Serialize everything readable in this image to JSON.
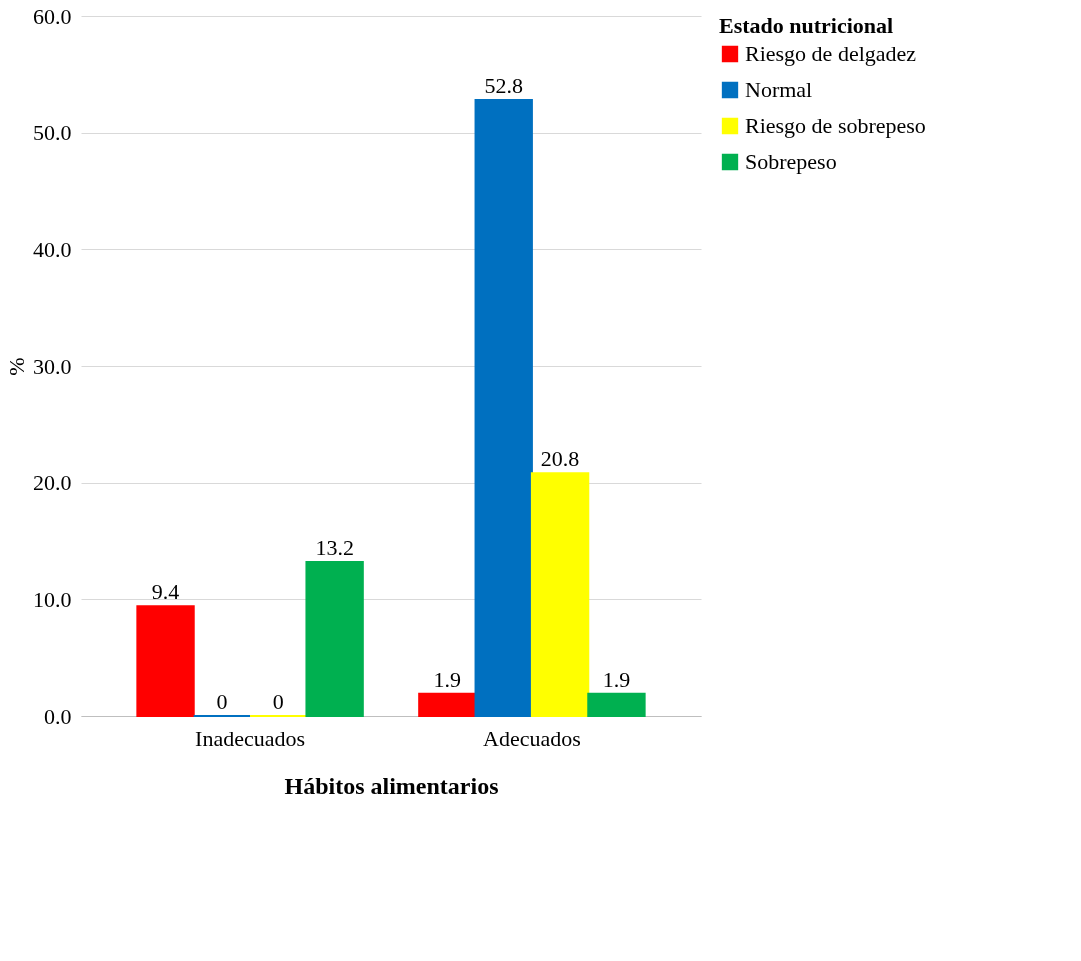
{
  "chart_data": {
    "type": "bar",
    "xlabel": "Hábitos alimentarios",
    "ylabel": "%",
    "legend_title": "Estado nutricional",
    "categories": [
      "Inadecuados",
      "Adecuados"
    ],
    "series": [
      {
        "name": "Riesgo de delgadez",
        "color": "#ff0000",
        "values": [
          9.4,
          1.9
        ]
      },
      {
        "name": "Normal",
        "color": "#0070c0",
        "values": [
          0,
          52.8
        ]
      },
      {
        "name": "Riesgo de sobrepeso",
        "color": "#ffff00",
        "values": [
          0,
          20.8
        ]
      },
      {
        "name": "Sobrepeso",
        "color": "#00b050",
        "values": [
          13.2,
          1.9
        ]
      }
    ],
    "ylim": [
      0,
      60
    ],
    "yticks": [
      {
        "value": 0,
        "label": "0.0"
      },
      {
        "value": 10,
        "label": "10.0"
      },
      {
        "value": 20,
        "label": "20.0"
      },
      {
        "value": 30,
        "label": "30.0"
      },
      {
        "value": 40,
        "label": "40.0"
      },
      {
        "value": 50,
        "label": "50.0"
      },
      {
        "value": 60,
        "label": "60.0"
      }
    ],
    "grid": "y",
    "legend": "right",
    "data_labels": true
  }
}
